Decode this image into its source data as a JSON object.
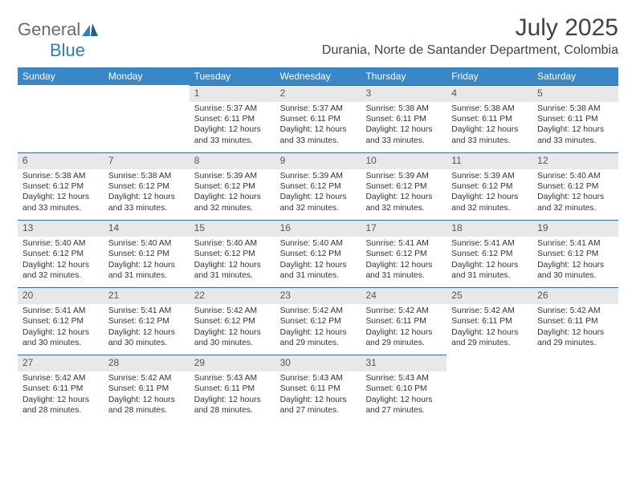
{
  "brand": {
    "word1": "General",
    "word2": "Blue"
  },
  "header": {
    "month_title": "July 2025",
    "location": "Durania, Norte de Santander Department, Colombia"
  },
  "colors": {
    "header_bar": "#3a87c7",
    "daynum_bg": "#e8e8e8",
    "text": "#333333",
    "brand_grey": "#6a6a6a",
    "brand_blue": "#2f7fb8",
    "rule": "#3a6a95"
  },
  "dow": [
    "Sunday",
    "Monday",
    "Tuesday",
    "Wednesday",
    "Thursday",
    "Friday",
    "Saturday"
  ],
  "weeks": [
    [
      null,
      null,
      {
        "n": "1",
        "sr": "5:37 AM",
        "ss": "6:11 PM",
        "dl": "12 hours and 33 minutes."
      },
      {
        "n": "2",
        "sr": "5:37 AM",
        "ss": "6:11 PM",
        "dl": "12 hours and 33 minutes."
      },
      {
        "n": "3",
        "sr": "5:38 AM",
        "ss": "6:11 PM",
        "dl": "12 hours and 33 minutes."
      },
      {
        "n": "4",
        "sr": "5:38 AM",
        "ss": "6:11 PM",
        "dl": "12 hours and 33 minutes."
      },
      {
        "n": "5",
        "sr": "5:38 AM",
        "ss": "6:11 PM",
        "dl": "12 hours and 33 minutes."
      }
    ],
    [
      {
        "n": "6",
        "sr": "5:38 AM",
        "ss": "6:12 PM",
        "dl": "12 hours and 33 minutes."
      },
      {
        "n": "7",
        "sr": "5:38 AM",
        "ss": "6:12 PM",
        "dl": "12 hours and 33 minutes."
      },
      {
        "n": "8",
        "sr": "5:39 AM",
        "ss": "6:12 PM",
        "dl": "12 hours and 32 minutes."
      },
      {
        "n": "9",
        "sr": "5:39 AM",
        "ss": "6:12 PM",
        "dl": "12 hours and 32 minutes."
      },
      {
        "n": "10",
        "sr": "5:39 AM",
        "ss": "6:12 PM",
        "dl": "12 hours and 32 minutes."
      },
      {
        "n": "11",
        "sr": "5:39 AM",
        "ss": "6:12 PM",
        "dl": "12 hours and 32 minutes."
      },
      {
        "n": "12",
        "sr": "5:40 AM",
        "ss": "6:12 PM",
        "dl": "12 hours and 32 minutes."
      }
    ],
    [
      {
        "n": "13",
        "sr": "5:40 AM",
        "ss": "6:12 PM",
        "dl": "12 hours and 32 minutes."
      },
      {
        "n": "14",
        "sr": "5:40 AM",
        "ss": "6:12 PM",
        "dl": "12 hours and 31 minutes."
      },
      {
        "n": "15",
        "sr": "5:40 AM",
        "ss": "6:12 PM",
        "dl": "12 hours and 31 minutes."
      },
      {
        "n": "16",
        "sr": "5:40 AM",
        "ss": "6:12 PM",
        "dl": "12 hours and 31 minutes."
      },
      {
        "n": "17",
        "sr": "5:41 AM",
        "ss": "6:12 PM",
        "dl": "12 hours and 31 minutes."
      },
      {
        "n": "18",
        "sr": "5:41 AM",
        "ss": "6:12 PM",
        "dl": "12 hours and 31 minutes."
      },
      {
        "n": "19",
        "sr": "5:41 AM",
        "ss": "6:12 PM",
        "dl": "12 hours and 30 minutes."
      }
    ],
    [
      {
        "n": "20",
        "sr": "5:41 AM",
        "ss": "6:12 PM",
        "dl": "12 hours and 30 minutes."
      },
      {
        "n": "21",
        "sr": "5:41 AM",
        "ss": "6:12 PM",
        "dl": "12 hours and 30 minutes."
      },
      {
        "n": "22",
        "sr": "5:42 AM",
        "ss": "6:12 PM",
        "dl": "12 hours and 30 minutes."
      },
      {
        "n": "23",
        "sr": "5:42 AM",
        "ss": "6:12 PM",
        "dl": "12 hours and 29 minutes."
      },
      {
        "n": "24",
        "sr": "5:42 AM",
        "ss": "6:11 PM",
        "dl": "12 hours and 29 minutes."
      },
      {
        "n": "25",
        "sr": "5:42 AM",
        "ss": "6:11 PM",
        "dl": "12 hours and 29 minutes."
      },
      {
        "n": "26",
        "sr": "5:42 AM",
        "ss": "6:11 PM",
        "dl": "12 hours and 29 minutes."
      }
    ],
    [
      {
        "n": "27",
        "sr": "5:42 AM",
        "ss": "6:11 PM",
        "dl": "12 hours and 28 minutes."
      },
      {
        "n": "28",
        "sr": "5:42 AM",
        "ss": "6:11 PM",
        "dl": "12 hours and 28 minutes."
      },
      {
        "n": "29",
        "sr": "5:43 AM",
        "ss": "6:11 PM",
        "dl": "12 hours and 28 minutes."
      },
      {
        "n": "30",
        "sr": "5:43 AM",
        "ss": "6:11 PM",
        "dl": "12 hours and 27 minutes."
      },
      {
        "n": "31",
        "sr": "5:43 AM",
        "ss": "6:10 PM",
        "dl": "12 hours and 27 minutes."
      },
      null,
      null
    ]
  ],
  "labels": {
    "sunrise": "Sunrise: ",
    "sunset": "Sunset: ",
    "daylight": "Daylight: "
  }
}
